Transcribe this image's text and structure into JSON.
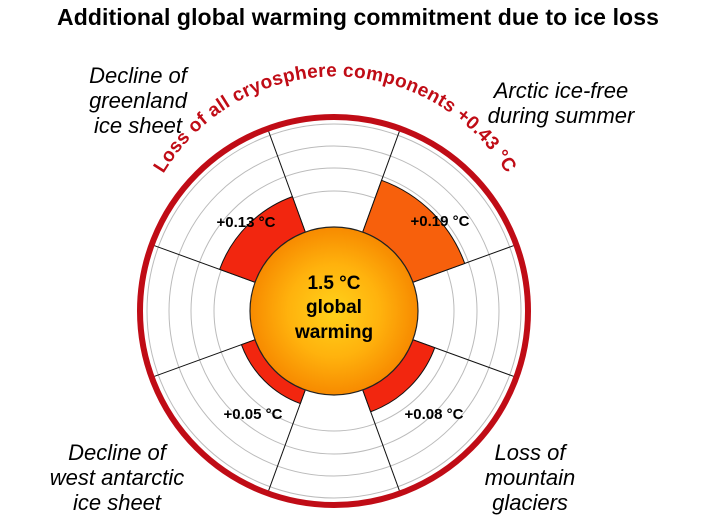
{
  "title": "Additional global warming commitment due to ice loss",
  "center": {
    "line1": "1.5 °C",
    "line2": "global",
    "line3": "warming"
  },
  "ring_label": "Loss of all cryosphere components +0.43 °C",
  "segments": [
    {
      "id": "greenland",
      "label": "Decline of\ngreenland\nice sheet",
      "value": 0.13,
      "value_label": "+0.13 °C",
      "color": "#f2260f"
    },
    {
      "id": "arctic",
      "label": "Arctic ice-free\nduring summer",
      "value": 0.19,
      "value_label": "+0.19 °C",
      "color": "#f7600c"
    },
    {
      "id": "glaciers",
      "label": "Loss of\nmountain\nglaciers",
      "value": 0.08,
      "value_label": "+0.08 °C",
      "color": "#f2260f"
    },
    {
      "id": "west_antarctic",
      "label": "Decline of\nwest antarctic\nice sheet",
      "value": 0.05,
      "value_label": "+0.05 °C",
      "color": "#f2260f"
    }
  ],
  "colors": {
    "ring": "#c00c16",
    "grid": "#bbbbbb",
    "center_inner": "#ffd21a",
    "center_outer": "#f78a00"
  }
}
